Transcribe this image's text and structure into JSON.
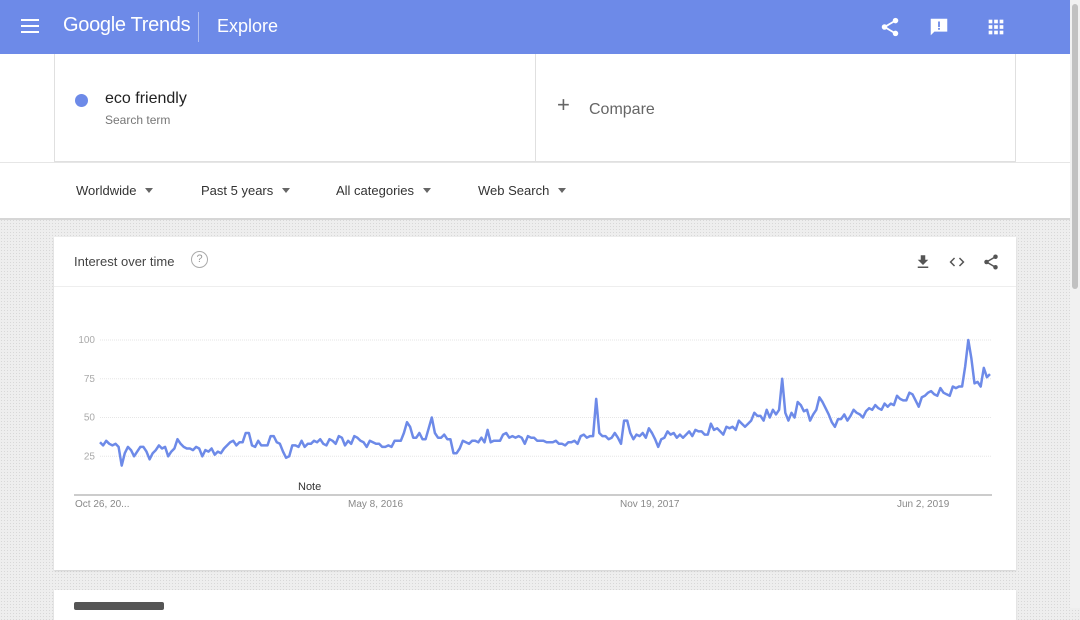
{
  "header": {
    "logo_google": "Google",
    "logo_trends": "Trends",
    "section": "Explore",
    "icons": [
      "menu-icon",
      "share-icon",
      "feedback-icon",
      "apps-icon"
    ]
  },
  "search": {
    "term": "eco friendly",
    "term_type": "Search term",
    "term_color": "#6d8ae8",
    "compare_label": "Compare"
  },
  "filters": {
    "region": "Worldwide",
    "time": "Past 5 years",
    "category": "All categories",
    "property": "Web Search"
  },
  "interest_card": {
    "title": "Interest over time",
    "help": "?",
    "icons": [
      "download-icon",
      "embed-icon",
      "share-icon"
    ],
    "note_label": "Note"
  },
  "chart_data": {
    "type": "line",
    "series": [
      {
        "name": "eco friendly",
        "color": "#6d8ae8"
      }
    ],
    "yticks": [
      100,
      75,
      50,
      25
    ],
    "xtick_labels": [
      "Oct 26, 20...",
      "May 8, 2016",
      "Nov 19, 2017",
      "Jun 2, 2019"
    ],
    "ylim": [
      0,
      100
    ],
    "x_start": "2014-10-26",
    "x_end": "2019-10-20",
    "grid": true,
    "values": [
      34,
      32,
      35,
      33,
      32,
      33,
      31,
      19,
      27,
      31,
      29,
      25,
      28,
      31,
      31,
      28,
      23,
      27,
      29,
      32,
      30,
      31,
      25,
      28,
      30,
      36,
      33,
      31,
      30,
      30,
      29,
      31,
      30,
      25,
      29,
      28,
      30,
      26,
      28,
      27,
      30,
      32,
      34,
      35,
      32,
      34,
      34,
      40,
      40,
      32,
      31,
      35,
      32,
      32,
      32,
      38,
      38,
      34,
      33,
      28,
      24,
      25,
      32,
      32,
      31,
      35,
      31,
      33,
      33,
      35,
      34,
      36,
      33,
      32,
      36,
      35,
      33,
      38,
      37,
      32,
      35,
      33,
      38,
      37,
      35,
      34,
      31,
      35,
      34,
      33,
      33,
      31,
      31,
      32,
      31,
      35,
      35,
      35,
      40,
      47,
      44,
      37,
      37,
      40,
      36,
      36,
      43,
      50,
      40,
      37,
      37,
      39,
      36,
      36,
      27,
      27,
      30,
      35,
      34,
      33,
      35,
      35,
      34,
      37,
      34,
      42,
      34,
      35,
      35,
      35,
      39,
      40,
      37,
      38,
      37,
      38,
      37,
      33,
      38,
      37,
      37,
      35,
      35,
      35,
      34,
      34,
      34,
      35,
      33,
      33,
      32,
      34,
      34,
      35,
      33,
      38,
      39,
      37,
      38,
      38,
      62,
      40,
      38,
      38,
      36,
      37,
      40,
      37,
      33,
      48,
      48,
      40,
      36,
      39,
      38,
      40,
      37,
      43,
      40,
      36,
      31,
      36,
      37,
      41,
      39,
      40,
      37,
      39,
      37,
      39,
      41,
      38,
      42,
      41,
      41,
      39,
      39,
      46,
      42,
      43,
      41,
      39,
      44,
      43,
      44,
      42,
      48,
      46,
      44,
      46,
      48,
      53,
      51,
      51,
      48,
      55,
      50,
      55,
      52,
      55,
      75,
      53,
      48,
      53,
      50,
      60,
      58,
      54,
      55,
      48,
      52,
      55,
      63,
      60,
      56,
      52,
      47,
      44,
      49,
      49,
      52,
      48,
      51,
      55,
      53,
      52,
      50,
      54,
      56,
      55,
      58,
      56,
      55,
      59,
      57,
      59,
      58,
      64,
      62,
      61,
      61,
      66,
      65,
      61,
      57,
      63,
      64,
      66,
      67,
      65,
      64,
      69,
      66,
      65,
      64,
      70,
      69,
      70,
      70,
      83,
      100,
      88,
      72,
      73,
      70,
      82,
      76,
      78
    ]
  }
}
